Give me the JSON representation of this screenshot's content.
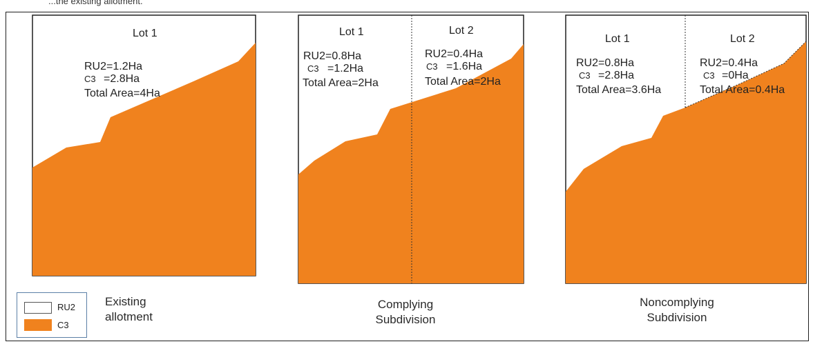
{
  "caption": "...the existing allotment.",
  "colors": {
    "ru2": "#ffffff",
    "c3": "#f0821e",
    "outline": "#1f1f1f"
  },
  "panels": {
    "existing": {
      "caption_line1": "Existing",
      "caption_line2": "allotment",
      "lot1": {
        "title": "Lot 1",
        "ru2": "RU2=1.2Ha",
        "c3_label": "C3",
        "c3_value": "=2.8Ha",
        "total": "Total Area=4Ha"
      }
    },
    "complying": {
      "caption_line1": "Complying",
      "caption_line2": "Subdivision",
      "lot1": {
        "title": "Lot 1",
        "ru2": "RU2=0.8Ha",
        "c3_label": "C3",
        "c3_value": "=1.2Ha",
        "total": "Total Area=2Ha"
      },
      "lot2": {
        "title": "Lot 2",
        "ru2": "RU2=0.4Ha",
        "c3_label": "C3",
        "c3_value": "=1.6Ha",
        "total": "Total Area=2Ha"
      }
    },
    "noncomplying": {
      "caption_line1": "Noncomplying",
      "caption_line2": "Subdivision",
      "lot1": {
        "title": "Lot 1",
        "ru2": "RU2=0.8Ha",
        "c3_label": "C3",
        "c3_value": "=2.8Ha",
        "total": "Total Area=3.6Ha"
      },
      "lot2": {
        "title": "Lot 2",
        "ru2": "RU2=0.4Ha",
        "c3_label": "C3",
        "c3_value": "=0Ha",
        "total": "Total Area=0.4Ha"
      }
    }
  },
  "legend": {
    "ru2": "RU2",
    "c3": "C3"
  }
}
